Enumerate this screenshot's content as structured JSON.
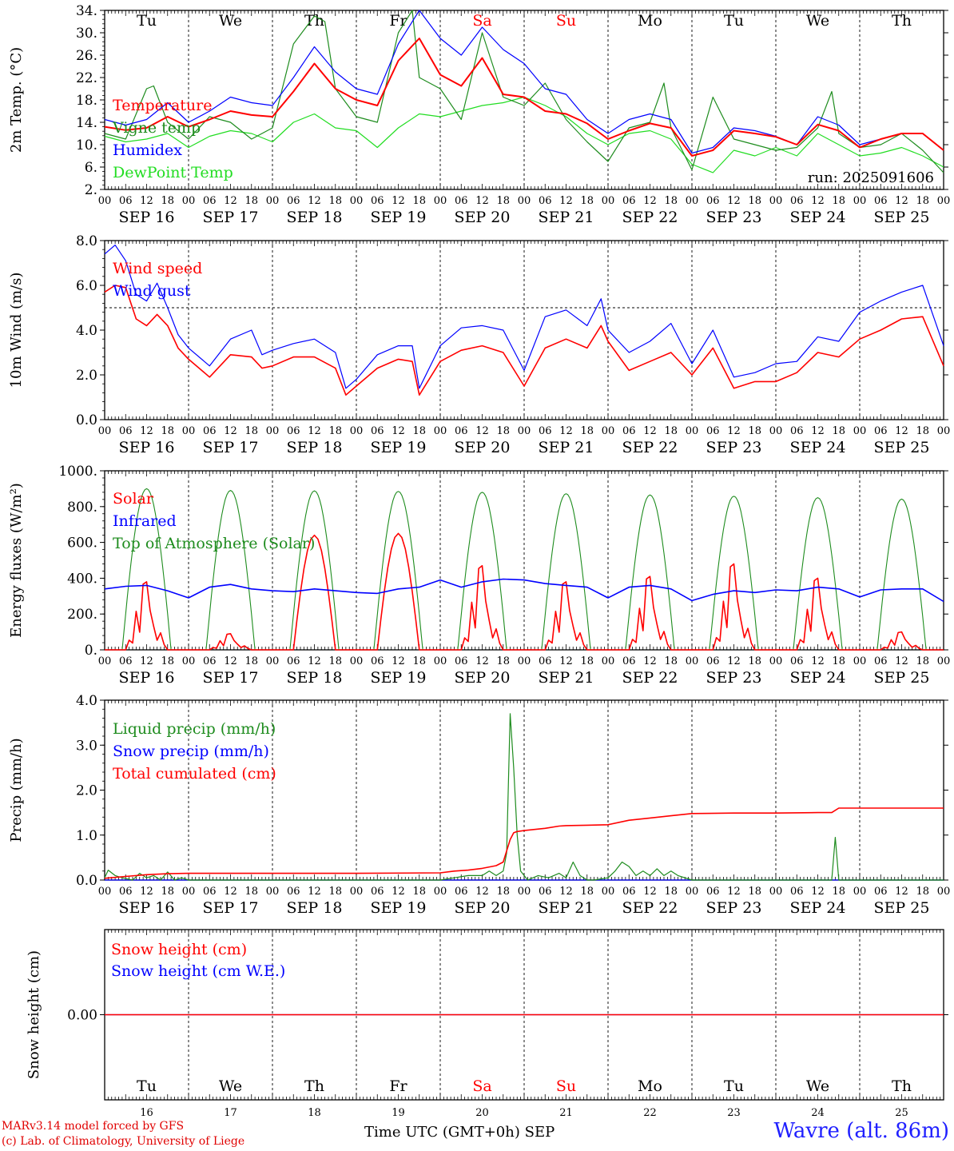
{
  "colors": {
    "red": "#ff0000",
    "blue": "#0000ff",
    "green": "#008000",
    "lightgreen": "#22dd22",
    "darkgreen": "#1e8c1e",
    "weekend": "#ff0000",
    "grid": "#000000"
  },
  "days": {
    "weekday_labels": [
      "Tu",
      "We",
      "Th",
      "Fr",
      "Sa",
      "Su",
      "Mo",
      "Tu",
      "We",
      "Th"
    ],
    "weekend_flags": [
      false,
      false,
      false,
      false,
      true,
      true,
      false,
      false,
      false,
      false
    ],
    "date_labels": [
      "SEP 16",
      "SEP 17",
      "SEP 18",
      "SEP 19",
      "SEP 20",
      "SEP 21",
      "SEP 22",
      "SEP 23",
      "SEP 24",
      "SEP 25"
    ],
    "day_numbers": [
      "16",
      "17",
      "18",
      "19",
      "20",
      "21",
      "22",
      "23",
      "24",
      "25"
    ],
    "hour_labels": [
      "00",
      "06",
      "12",
      "18"
    ],
    "final_hour_label": "00"
  },
  "footer": {
    "credit_line1": "MARv3.14 model forced by GFS",
    "credit_line2": "(c) Lab. of Climatology, University of Liege",
    "axis_title": "Time UTC (GMT+0h)",
    "month": "SEP",
    "station": "Wavre (alt. 86m)"
  },
  "chart_data": [
    {
      "type": "line",
      "ylabel": "2m Temp. (°C)",
      "ylim": [
        2,
        34
      ],
      "yticks": [
        2,
        6,
        10,
        14,
        18,
        22,
        26,
        30,
        34
      ],
      "ytick_labels": [
        "2.",
        "6.",
        "10.",
        "14.",
        "18.",
        "22.",
        "26.",
        "30.",
        "34."
      ],
      "annotation": "run: 2025091606",
      "x_unit": "hours since SEP 16 00 UTC",
      "series": [
        {
          "name": "Temperature",
          "color": "#ff0000",
          "x": [
            0,
            6,
            12,
            18,
            24,
            30,
            36,
            42,
            48,
            54,
            60,
            66,
            72,
            78,
            84,
            90,
            96,
            102,
            108,
            114,
            120,
            126,
            132,
            138,
            144,
            150,
            156,
            162,
            168,
            174,
            180,
            186,
            192,
            198,
            204,
            210,
            216,
            222,
            228,
            234,
            240
          ],
          "y": [
            13.2,
            12.6,
            13,
            15,
            13.2,
            14.5,
            16,
            15.3,
            15,
            19.5,
            24.5,
            20,
            18,
            17,
            25,
            29,
            22.5,
            20.5,
            25.5,
            19,
            18.5,
            16,
            15.5,
            13.8,
            11,
            12.5,
            13.8,
            13,
            8,
            9,
            12.5,
            12,
            11.4,
            10,
            13.6,
            12.5,
            9.5,
            11,
            12,
            12,
            9
          ]
        },
        {
          "name": "Vigne temp",
          "color": "#1e8c1e",
          "x": [
            0,
            6,
            12,
            14,
            18,
            24,
            30,
            36,
            42,
            48,
            54,
            60,
            63,
            66,
            72,
            78,
            84,
            88,
            90,
            96,
            102,
            108,
            114,
            120,
            126,
            132,
            138,
            144,
            150,
            156,
            160,
            162,
            168,
            174,
            180,
            186,
            192,
            198,
            204,
            208,
            210,
            216,
            222,
            228,
            234,
            240
          ],
          "y": [
            12,
            11,
            20,
            20.5,
            14,
            11,
            15,
            14,
            11,
            13,
            28,
            33,
            32,
            20,
            15,
            14,
            30,
            34,
            22,
            20,
            14.5,
            30,
            18.5,
            17,
            21,
            14.5,
            10.5,
            7,
            13,
            14,
            21,
            13,
            5.5,
            18.5,
            11,
            10,
            9,
            9.5,
            13,
            19.5,
            12,
            9.5,
            10,
            12,
            9,
            5
          ]
        },
        {
          "name": "Humidex",
          "color": "#0000ff",
          "x": [
            0,
            6,
            12,
            18,
            24,
            30,
            36,
            42,
            48,
            54,
            60,
            66,
            72,
            78,
            84,
            90,
            96,
            102,
            108,
            114,
            120,
            126,
            132,
            138,
            144,
            150,
            156,
            162,
            168,
            174,
            180,
            186,
            192,
            198,
            204,
            210,
            216,
            222,
            228,
            234,
            240
          ],
          "y": [
            14.5,
            13.5,
            14.5,
            17.5,
            14,
            16,
            18.5,
            17.5,
            17,
            22,
            27.5,
            23,
            20,
            19,
            28,
            34,
            29,
            26,
            31,
            27,
            24.5,
            20,
            19,
            14.5,
            12,
            14.5,
            15.5,
            14.5,
            8.5,
            9.5,
            13,
            12.5,
            11.5,
            10,
            15,
            13.5,
            10,
            11,
            12,
            12,
            9
          ]
        },
        {
          "name": "DewPoint Temp",
          "color": "#22dd22",
          "x": [
            0,
            6,
            12,
            18,
            24,
            30,
            36,
            42,
            48,
            54,
            60,
            66,
            72,
            78,
            84,
            90,
            96,
            102,
            108,
            114,
            120,
            126,
            132,
            138,
            144,
            150,
            156,
            162,
            168,
            174,
            180,
            186,
            192,
            198,
            204,
            210,
            216,
            222,
            228,
            234,
            240
          ],
          "y": [
            11.5,
            10.5,
            11,
            12,
            9.5,
            11.5,
            12.5,
            12,
            10.5,
            14,
            15.5,
            13,
            12.5,
            9.5,
            13,
            15.5,
            15,
            16,
            17,
            17.5,
            18.5,
            17,
            15,
            12,
            10,
            12,
            12.5,
            11,
            6.5,
            5,
            9,
            8,
            9.5,
            8,
            12,
            10,
            8,
            8.5,
            9.5,
            8,
            6
          ]
        }
      ]
    },
    {
      "type": "line",
      "ylabel": "10m Wind (m/s)",
      "ylim": [
        0,
        8
      ],
      "yticks": [
        0,
        2,
        4,
        6,
        8
      ],
      "ytick_labels": [
        "0.0",
        "2.0",
        "4.0",
        "6.0",
        "8.0"
      ],
      "reference_line": 5,
      "x_unit": "hours since SEP 16 00 UTC",
      "series": [
        {
          "name": "Wind speed",
          "color": "#ff0000",
          "x": [
            0,
            3,
            6,
            9,
            12,
            15,
            18,
            21,
            24,
            30,
            36,
            42,
            45,
            48,
            54,
            60,
            66,
            69,
            72,
            78,
            84,
            88,
            90,
            96,
            102,
            108,
            114,
            120,
            126,
            132,
            138,
            142,
            144,
            150,
            156,
            162,
            168,
            174,
            180,
            186,
            192,
            198,
            204,
            210,
            216,
            222,
            228,
            234,
            240
          ],
          "y": [
            5.7,
            6.0,
            5.9,
            4.5,
            4.2,
            4.7,
            4.2,
            3.2,
            2.7,
            1.9,
            2.9,
            2.8,
            2.3,
            2.4,
            2.8,
            2.8,
            2.3,
            1.1,
            1.5,
            2.3,
            2.7,
            2.6,
            1.1,
            2.6,
            3.1,
            3.3,
            3.0,
            1.5,
            3.2,
            3.6,
            3.2,
            4.2,
            3.5,
            2.2,
            2.6,
            3.0,
            2.0,
            3.2,
            1.4,
            1.7,
            1.7,
            2.1,
            3.0,
            2.8,
            3.6,
            4.0,
            4.5,
            4.6,
            2.4
          ]
        },
        {
          "name": "Wind gust",
          "color": "#0000ff",
          "x": [
            0,
            3,
            6,
            9,
            12,
            15,
            18,
            21,
            24,
            30,
            36,
            42,
            45,
            48,
            54,
            60,
            66,
            69,
            72,
            78,
            84,
            88,
            90,
            96,
            102,
            108,
            114,
            120,
            126,
            132,
            138,
            142,
            144,
            150,
            156,
            162,
            168,
            174,
            180,
            186,
            192,
            198,
            204,
            210,
            216,
            222,
            228,
            234,
            240
          ],
          "y": [
            7.4,
            7.8,
            7.1,
            5.6,
            5.3,
            6.1,
            5.0,
            3.8,
            3.2,
            2.4,
            3.6,
            4.0,
            2.9,
            3.1,
            3.4,
            3.6,
            3.0,
            1.4,
            1.8,
            2.9,
            3.3,
            3.3,
            1.4,
            3.3,
            4.1,
            4.2,
            4.0,
            2.2,
            4.6,
            4.9,
            4.2,
            5.4,
            4.0,
            3.0,
            3.5,
            4.3,
            2.5,
            4.0,
            1.9,
            2.1,
            2.5,
            2.6,
            3.7,
            3.5,
            4.8,
            5.3,
            5.7,
            6.0,
            3.3
          ]
        }
      ]
    },
    {
      "type": "line",
      "ylabel": "Energy fluxes (W/m²)",
      "ylim": [
        0,
        1000
      ],
      "yticks": [
        0,
        200,
        400,
        600,
        800,
        1000
      ],
      "ytick_labels": [
        "0.",
        "200.",
        "400.",
        "600.",
        "800.",
        "1000."
      ],
      "x_unit": "hours since SEP 16 00 UTC",
      "toa_peaks": [
        900,
        890,
        888,
        885,
        880,
        872,
        865,
        858,
        850,
        842
      ],
      "solar_peaks": [
        380,
        90,
        640,
        650,
        470,
        380,
        410,
        480,
        400,
        100
      ],
      "series": [
        {
          "name": "Solar",
          "color": "#ff0000"
        },
        {
          "name": "Infrared",
          "color": "#0000ff",
          "x": [
            0,
            6,
            12,
            18,
            24,
            30,
            36,
            42,
            48,
            54,
            60,
            66,
            72,
            78,
            84,
            90,
            96,
            102,
            108,
            114,
            120,
            126,
            132,
            138,
            144,
            150,
            156,
            162,
            168,
            174,
            180,
            186,
            192,
            198,
            204,
            210,
            216,
            222,
            228,
            234,
            240
          ],
          "y": [
            340,
            355,
            360,
            330,
            290,
            350,
            365,
            340,
            330,
            325,
            340,
            330,
            320,
            315,
            340,
            350,
            390,
            350,
            380,
            395,
            390,
            370,
            360,
            350,
            290,
            350,
            360,
            340,
            275,
            310,
            330,
            320,
            335,
            330,
            350,
            340,
            295,
            335,
            340,
            340,
            270
          ]
        },
        {
          "name": "Top of Atmosphere (Solar)",
          "color": "#1e8c1e"
        }
      ]
    },
    {
      "type": "line",
      "ylabel": "Precip (mm/h)",
      "ylim": [
        0,
        4
      ],
      "yticks": [
        0,
        1,
        2,
        3,
        4
      ],
      "ytick_labels": [
        "0.0",
        "1.0",
        "2.0",
        "3.0",
        "4.0"
      ],
      "x_unit": "hours since SEP 16 00 UTC",
      "series": [
        {
          "name": "Liquid precip (mm/h)",
          "color": "#1e8c1e",
          "x": [
            0,
            1,
            3,
            5,
            8,
            10,
            12,
            14,
            16,
            18,
            20,
            22,
            24,
            96,
            100,
            104,
            108,
            110,
            112,
            114,
            115,
            116,
            117,
            118,
            119,
            121,
            124,
            127,
            130,
            132,
            134,
            136,
            138,
            140,
            144,
            146,
            148,
            150,
            152,
            154,
            156,
            158,
            160,
            162,
            164,
            168,
            180,
            192,
            204,
            208,
            209,
            210,
            212,
            240
          ],
          "y": [
            0.05,
            0.22,
            0.1,
            0.05,
            0.0,
            0.15,
            0.05,
            0.1,
            0.0,
            0.18,
            0.0,
            0.05,
            0.0,
            0.0,
            0.05,
            0.1,
            0.1,
            0.2,
            0.1,
            0.2,
            0.6,
            3.7,
            2.5,
            1.0,
            0.2,
            0.0,
            0.1,
            0.05,
            0.15,
            0.05,
            0.4,
            0.1,
            0.0,
            0.0,
            0.05,
            0.2,
            0.4,
            0.3,
            0.1,
            0.2,
            0.1,
            0.25,
            0.1,
            0.2,
            0.1,
            0.0,
            0.0,
            0.0,
            0.0,
            0.0,
            0.95,
            0.0,
            0.0,
            0.0
          ]
        },
        {
          "name": "Snow precip (mm/h)",
          "color": "#0000ff",
          "x": [
            0,
            240
          ],
          "y": [
            0,
            0
          ]
        },
        {
          "name": "Total cumulated (cm)",
          "color": "#ff0000",
          "x": [
            0,
            6,
            12,
            18,
            24,
            48,
            72,
            96,
            100,
            104,
            108,
            112,
            114,
            116,
            117,
            118,
            120,
            126,
            130,
            132,
            138,
            144,
            150,
            156,
            162,
            168,
            180,
            192,
            204,
            208,
            210,
            216,
            240
          ],
          "y": [
            0.04,
            0.08,
            0.12,
            0.14,
            0.15,
            0.15,
            0.15,
            0.16,
            0.2,
            0.22,
            0.26,
            0.32,
            0.4,
            0.9,
            1.05,
            1.08,
            1.1,
            1.15,
            1.2,
            1.21,
            1.22,
            1.23,
            1.33,
            1.38,
            1.43,
            1.48,
            1.49,
            1.49,
            1.5,
            1.5,
            1.6,
            1.6,
            1.6
          ]
        }
      ]
    },
    {
      "type": "line",
      "ylabel": "Snow height (cm)",
      "ytick_labels": [
        "0.00"
      ],
      "x_unit": "hours since SEP 16 00 UTC",
      "series": [
        {
          "name": "Snow height (cm)",
          "color": "#ff0000",
          "x": [
            0,
            240
          ],
          "y": [
            0,
            0
          ]
        },
        {
          "name": "Snow height (cm W.E.)",
          "color": "#0000ff",
          "x": [
            0,
            240
          ],
          "y": [
            0,
            0
          ]
        }
      ]
    }
  ]
}
